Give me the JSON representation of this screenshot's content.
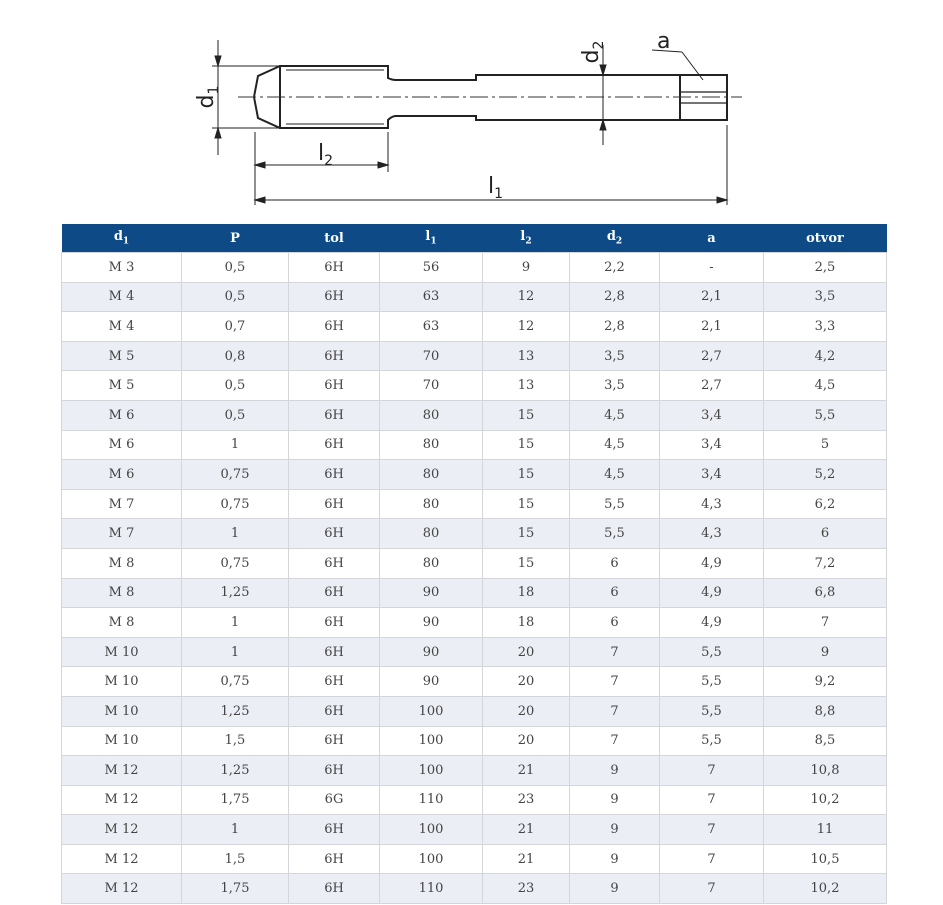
{
  "drawing": {
    "labels": [
      {
        "text": "d",
        "sub": "1"
      },
      {
        "text": "l",
        "sub": "2"
      },
      {
        "text": "l",
        "sub": "1"
      },
      {
        "text": "d",
        "sub": "2"
      },
      {
        "text": "a"
      }
    ]
  },
  "table": {
    "headers": [
      {
        "text": "d",
        "sub": "1"
      },
      {
        "text": "P"
      },
      {
        "text": "tol"
      },
      {
        "text": "l",
        "sub": "1"
      },
      {
        "text": "l",
        "sub": "2"
      },
      {
        "text": "d",
        "sub": "2"
      },
      {
        "text": "a"
      },
      {
        "text": "otvor"
      }
    ],
    "rows": [
      [
        "M 3",
        "0,5",
        "6H",
        "56",
        "9",
        "2,2",
        "-",
        "2,5"
      ],
      [
        "M 4",
        "0,5",
        "6H",
        "63",
        "12",
        "2,8",
        "2,1",
        "3,5"
      ],
      [
        "M 4",
        "0,7",
        "6H",
        "63",
        "12",
        "2,8",
        "2,1",
        "3,3"
      ],
      [
        "M 5",
        "0,8",
        "6H",
        "70",
        "13",
        "3,5",
        "2,7",
        "4,2"
      ],
      [
        "M 5",
        "0,5",
        "6H",
        "70",
        "13",
        "3,5",
        "2,7",
        "4,5"
      ],
      [
        "M 6",
        "0,5",
        "6H",
        "80",
        "15",
        "4,5",
        "3,4",
        "5,5"
      ],
      [
        "M 6",
        "1",
        "6H",
        "80",
        "15",
        "4,5",
        "3,4",
        "5"
      ],
      [
        "M 6",
        "0,75",
        "6H",
        "80",
        "15",
        "4,5",
        "3,4",
        "5,2"
      ],
      [
        "M 7",
        "0,75",
        "6H",
        "80",
        "15",
        "5,5",
        "4,3",
        "6,2"
      ],
      [
        "M 7",
        "1",
        "6H",
        "80",
        "15",
        "5,5",
        "4,3",
        "6"
      ],
      [
        "M 8",
        "0,75",
        "6H",
        "80",
        "15",
        "6",
        "4,9",
        "7,2"
      ],
      [
        "M 8",
        "1,25",
        "6H",
        "90",
        "18",
        "6",
        "4,9",
        "6,8"
      ],
      [
        "M 8",
        "1",
        "6H",
        "90",
        "18",
        "6",
        "4,9",
        "7"
      ],
      [
        "M 10",
        "1",
        "6H",
        "90",
        "20",
        "7",
        "5,5",
        "9"
      ],
      [
        "M 10",
        "0,75",
        "6H",
        "90",
        "20",
        "7",
        "5,5",
        "9,2"
      ],
      [
        "M 10",
        "1,25",
        "6H",
        "100",
        "20",
        "7",
        "5,5",
        "8,8"
      ],
      [
        "M 10",
        "1,5",
        "6H",
        "100",
        "20",
        "7",
        "5,5",
        "8,5"
      ],
      [
        "M 12",
        "1,25",
        "6H",
        "100",
        "21",
        "9",
        "7",
        "10,8"
      ],
      [
        "M 12",
        "1,75",
        "6G",
        "110",
        "23",
        "9",
        "7",
        "10,2"
      ],
      [
        "M 12",
        "1",
        "6H",
        "100",
        "21",
        "9",
        "7",
        "11"
      ],
      [
        "M 12",
        "1,5",
        "6H",
        "100",
        "21",
        "9",
        "7",
        "10,5"
      ],
      [
        "M 12",
        "1,75",
        "6H",
        "110",
        "23",
        "9",
        "7",
        "10,2"
      ]
    ]
  }
}
